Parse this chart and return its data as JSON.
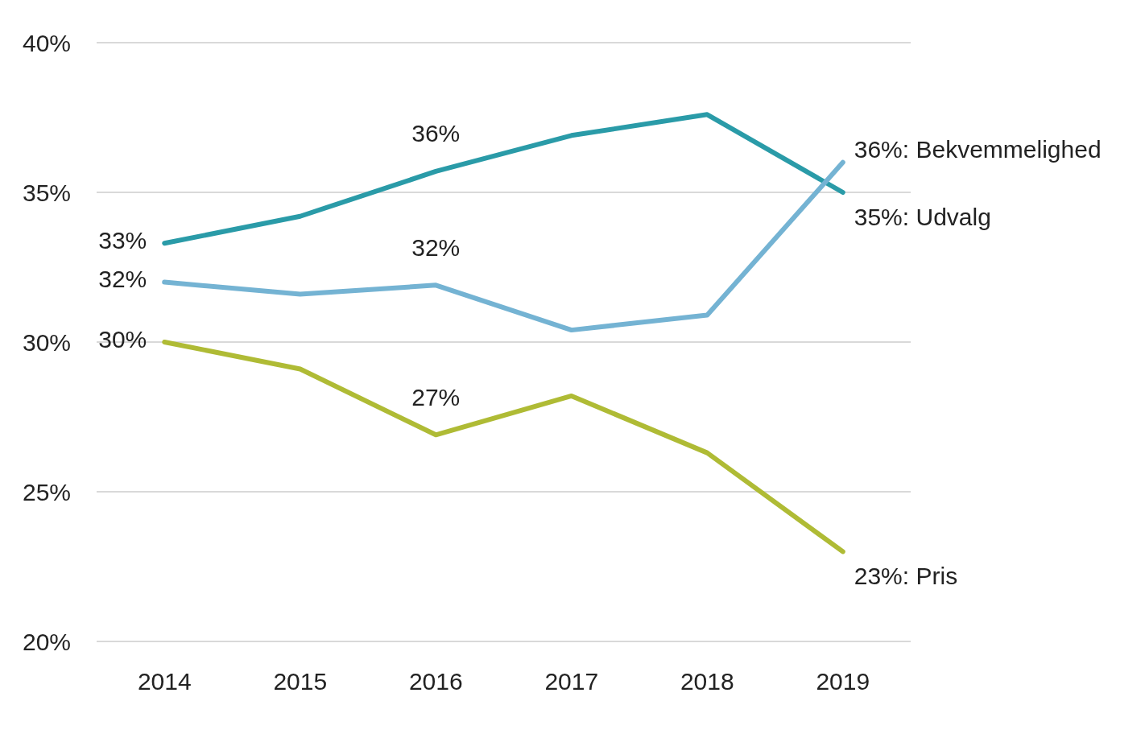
{
  "chart_data": {
    "type": "line",
    "categories": [
      "2014",
      "2015",
      "2016",
      "2017",
      "2018",
      "2019"
    ],
    "series": [
      {
        "name": "Udvalg",
        "color": "#2a9ba8",
        "values": [
          33.3,
          34.2,
          35.7,
          36.9,
          37.6,
          35.0
        ],
        "value_labels": [
          "33%",
          null,
          "36%",
          null,
          null,
          "35%:"
        ]
      },
      {
        "name": "Bekvemmelighed",
        "color": "#74b3d3",
        "values": [
          32.0,
          31.6,
          31.9,
          30.4,
          30.9,
          36.0
        ],
        "value_labels": [
          "32%",
          null,
          "32%",
          null,
          null,
          "36%:"
        ]
      },
      {
        "name": "Pris",
        "color": "#afbb35",
        "values": [
          30.0,
          29.1,
          26.9,
          28.2,
          26.3,
          23.0
        ],
        "value_labels": [
          "30%",
          null,
          "27%",
          null,
          null,
          "23%:"
        ]
      }
    ],
    "ylim": [
      20,
      40
    ],
    "yticks": [
      {
        "value": 20,
        "label": "20%"
      },
      {
        "value": 25,
        "label": "25%"
      },
      {
        "value": 30,
        "label": "30%"
      },
      {
        "value": 35,
        "label": "35%"
      },
      {
        "value": 40,
        "label": "40%"
      }
    ],
    "grid": "y",
    "legend": false,
    "marker": "none",
    "line_style": "solid"
  }
}
